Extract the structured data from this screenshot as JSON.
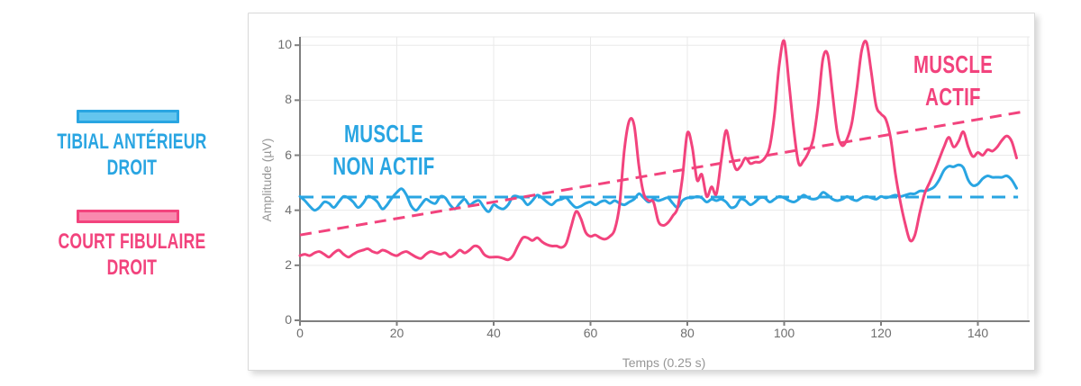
{
  "legend": {
    "items": [
      {
        "line1": "TIBIAL ANTÉRIEUR",
        "line2": "DROIT",
        "color": "#29a5e2",
        "fill": "#63c5ee"
      },
      {
        "line1": "COURT FIBULAIRE",
        "line2": "DROIT",
        "color": "#f2437d",
        "fill": "#f989ae"
      }
    ]
  },
  "chart_data": {
    "type": "line",
    "title": "",
    "xlabel": "Temps (0.25 s)",
    "ylabel": "Amplitude (µV)",
    "x_ticks": [
      0,
      20,
      40,
      60,
      80,
      100,
      120,
      140
    ],
    "y_ticks": [
      0,
      2,
      4,
      6,
      8,
      10
    ],
    "xlim": [
      0,
      150.7
    ],
    "ylim": [
      0,
      10.4
    ],
    "grid": true,
    "legend_position": "outside-left",
    "x_start": 0,
    "x_step": 1,
    "series": [
      {
        "name": "Tibial antérieur droit",
        "color": "#29a5e2",
        "style": "solid",
        "values": [
          4.5,
          4.35,
          4.15,
          4.0,
          4.1,
          4.3,
          4.25,
          4.1,
          4.3,
          4.5,
          4.45,
          4.3,
          4.1,
          4.25,
          4.5,
          4.45,
          4.3,
          4.05,
          4.2,
          4.45,
          4.65,
          4.78,
          4.55,
          4.15,
          4.0,
          4.2,
          4.4,
          4.3,
          4.25,
          4.5,
          4.45,
          4.2,
          4.05,
          4.25,
          4.4,
          4.2,
          4.3,
          4.35,
          4.1,
          3.95,
          4.2,
          4.1,
          4.05,
          4.2,
          4.5,
          4.5,
          4.4,
          4.2,
          4.35,
          4.55,
          4.45,
          4.3,
          4.2,
          4.35,
          4.4,
          4.45,
          4.25,
          4.1,
          4.15,
          4.25,
          4.3,
          4.2,
          4.3,
          4.35,
          4.25,
          4.35,
          4.25,
          4.2,
          4.3,
          4.4,
          4.6,
          4.45,
          4.3,
          4.4,
          4.35,
          4.4,
          4.45,
          4.25,
          4.1,
          4.35,
          4.45,
          4.45,
          4.5,
          4.45,
          4.3,
          4.4,
          4.35,
          4.4,
          4.3,
          4.1,
          4.15,
          4.4,
          4.35,
          4.2,
          4.3,
          4.45,
          4.45,
          4.3,
          4.4,
          4.5,
          4.45,
          4.35,
          4.3,
          4.4,
          4.55,
          4.45,
          4.4,
          4.45,
          4.65,
          4.55,
          4.4,
          4.35,
          4.4,
          4.5,
          4.4,
          4.35,
          4.45,
          4.5,
          4.45,
          4.4,
          4.5,
          4.45,
          4.5,
          4.55,
          4.5,
          4.55,
          4.6,
          4.6,
          4.7,
          4.7,
          4.75,
          4.85,
          5.1,
          5.45,
          5.6,
          5.58,
          5.65,
          5.55,
          5.1,
          4.9,
          4.95,
          5.15,
          5.25,
          5.2,
          5.2,
          5.2,
          5.25,
          5.1,
          4.8
        ]
      },
      {
        "name": "Court fibulaire droit",
        "color": "#f2437d",
        "style": "solid",
        "values": [
          2.35,
          2.4,
          2.35,
          2.45,
          2.5,
          2.4,
          2.3,
          2.45,
          2.55,
          2.4,
          2.3,
          2.4,
          2.5,
          2.55,
          2.6,
          2.5,
          2.45,
          2.55,
          2.5,
          2.4,
          2.35,
          2.45,
          2.5,
          2.4,
          2.3,
          2.25,
          2.4,
          2.5,
          2.45,
          2.4,
          2.45,
          2.3,
          2.4,
          2.55,
          2.45,
          2.55,
          2.7,
          2.65,
          2.4,
          2.3,
          2.3,
          2.3,
          2.25,
          2.2,
          2.35,
          2.7,
          3.0,
          3.0,
          2.9,
          3.0,
          2.85,
          2.75,
          2.7,
          2.7,
          2.65,
          2.8,
          3.4,
          3.95,
          3.7,
          3.2,
          3.05,
          3.1,
          3.0,
          2.95,
          3.05,
          3.3,
          4.2,
          6.2,
          7.25,
          7.1,
          5.6,
          4.6,
          4.35,
          4.3,
          3.6,
          3.45,
          3.55,
          3.8,
          4.1,
          5.2,
          6.8,
          6.3,
          5.1,
          5.3,
          4.5,
          4.85,
          4.6,
          5.8,
          6.9,
          6.1,
          5.5,
          5.6,
          5.9,
          5.7,
          5.75,
          5.75,
          5.9,
          6.3,
          7.5,
          9.3,
          10.15,
          8.6,
          6.9,
          5.7,
          5.8,
          6.1,
          6.6,
          7.8,
          9.5,
          9.65,
          8.2,
          6.8,
          6.35,
          6.6,
          7.2,
          8.4,
          9.8,
          10.1,
          9.0,
          7.8,
          7.5,
          7.3,
          6.6,
          5.3,
          4.3,
          3.5,
          2.9,
          3.1,
          3.9,
          4.6,
          5.0,
          5.4,
          5.85,
          6.3,
          6.65,
          6.3,
          6.5,
          6.85,
          6.3,
          5.95,
          6.1,
          6.0,
          6.2,
          6.15,
          6.3,
          6.55,
          6.7,
          6.5,
          5.9
        ]
      }
    ],
    "trend_lines": [
      {
        "name": "tibial-baseline",
        "color": "#29a5e2",
        "style": "dashed",
        "x1": 0,
        "y1": 4.48,
        "x2": 148.3,
        "y2": 4.48
      },
      {
        "name": "fibulaire-baseline",
        "color": "#f2437d",
        "style": "dashed",
        "x1": 0,
        "y1": 3.1,
        "x2": 149,
        "y2": 7.57
      }
    ],
    "annotations": [
      {
        "line1": "MUSCLE",
        "line2": "NON ACTIF",
        "color": "#29a5e2"
      },
      {
        "line1": "MUSCLE",
        "line2": "ACTIF",
        "color": "#f2437d"
      }
    ]
  }
}
